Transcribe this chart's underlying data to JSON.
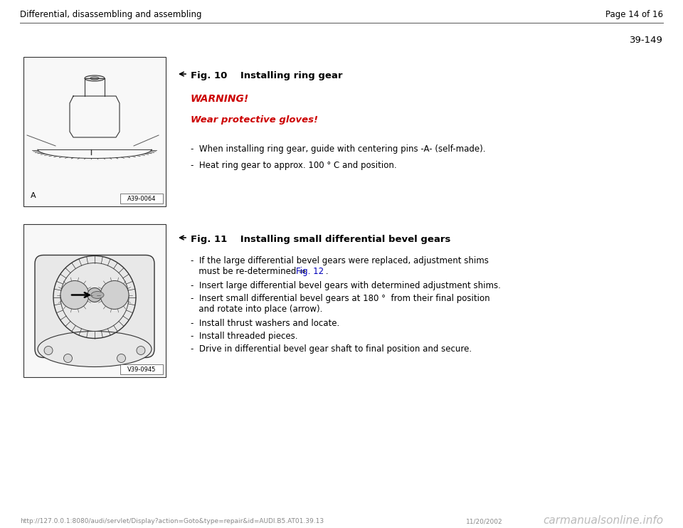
{
  "bg_color": "#ffffff",
  "header_left": "Differential, disassembling and assembling",
  "header_right": "Page 14 of 16",
  "page_number": "39-149",
  "fig1_title": "Fig. 10    Installing ring gear",
  "warning_text": "WARNING!",
  "warning_sub": "Wear protective gloves!",
  "bullet1_1": "-  When installing ring gear, guide with centering pins -A- (self-made).",
  "bullet1_2": "-  Heat ring gear to approx. 100 ° C and position.",
  "img1_label": "A39-0064",
  "img1_tag": "A",
  "fig2_title": "Fig. 11    Installing small differential bevel gears",
  "bullet2_1a": "-  If the large differential bevel gears were replaced, adjustment shims",
  "bullet2_1b": "   must be re-determined ⇒ ",
  "bullet2_1_link": "Fig. 12",
  "bullet2_1c": " .",
  "bullet2_2": "-  Insert large differential bevel gears with determined adjustment shims.",
  "bullet2_3a": "-  Insert small differential bevel gears at 180 °  from their final position",
  "bullet2_3b": "   and rotate into place (arrow).",
  "bullet2_4": "-  Install thrust washers and locate.",
  "bullet2_5": "-  Install threaded pieces.",
  "bullet2_6": "-  Drive in differential bevel gear shaft to final position and secure.",
  "img2_label": "V39-0945",
  "footer_url": "http://127.0.0.1:8080/audi/servlet/Display?action=Goto&type=repair&id=AUDI.B5.AT01.39.13",
  "footer_date": "11/20/2002",
  "footer_watermark": "carmanualsonline.info",
  "text_color": "#000000",
  "red_color": "#cc0000",
  "blue_color": "#0000bb",
  "light_gray": "#aaaaaa",
  "mid_gray": "#888888",
  "dark_gray": "#555555",
  "img_bg": "#f8f8f8",
  "header_fs": 8.5,
  "title_fs": 9.5,
  "body_fs": 8.5,
  "warning_fs": 10,
  "footer_fs": 6.5,
  "watermark_fs": 11
}
